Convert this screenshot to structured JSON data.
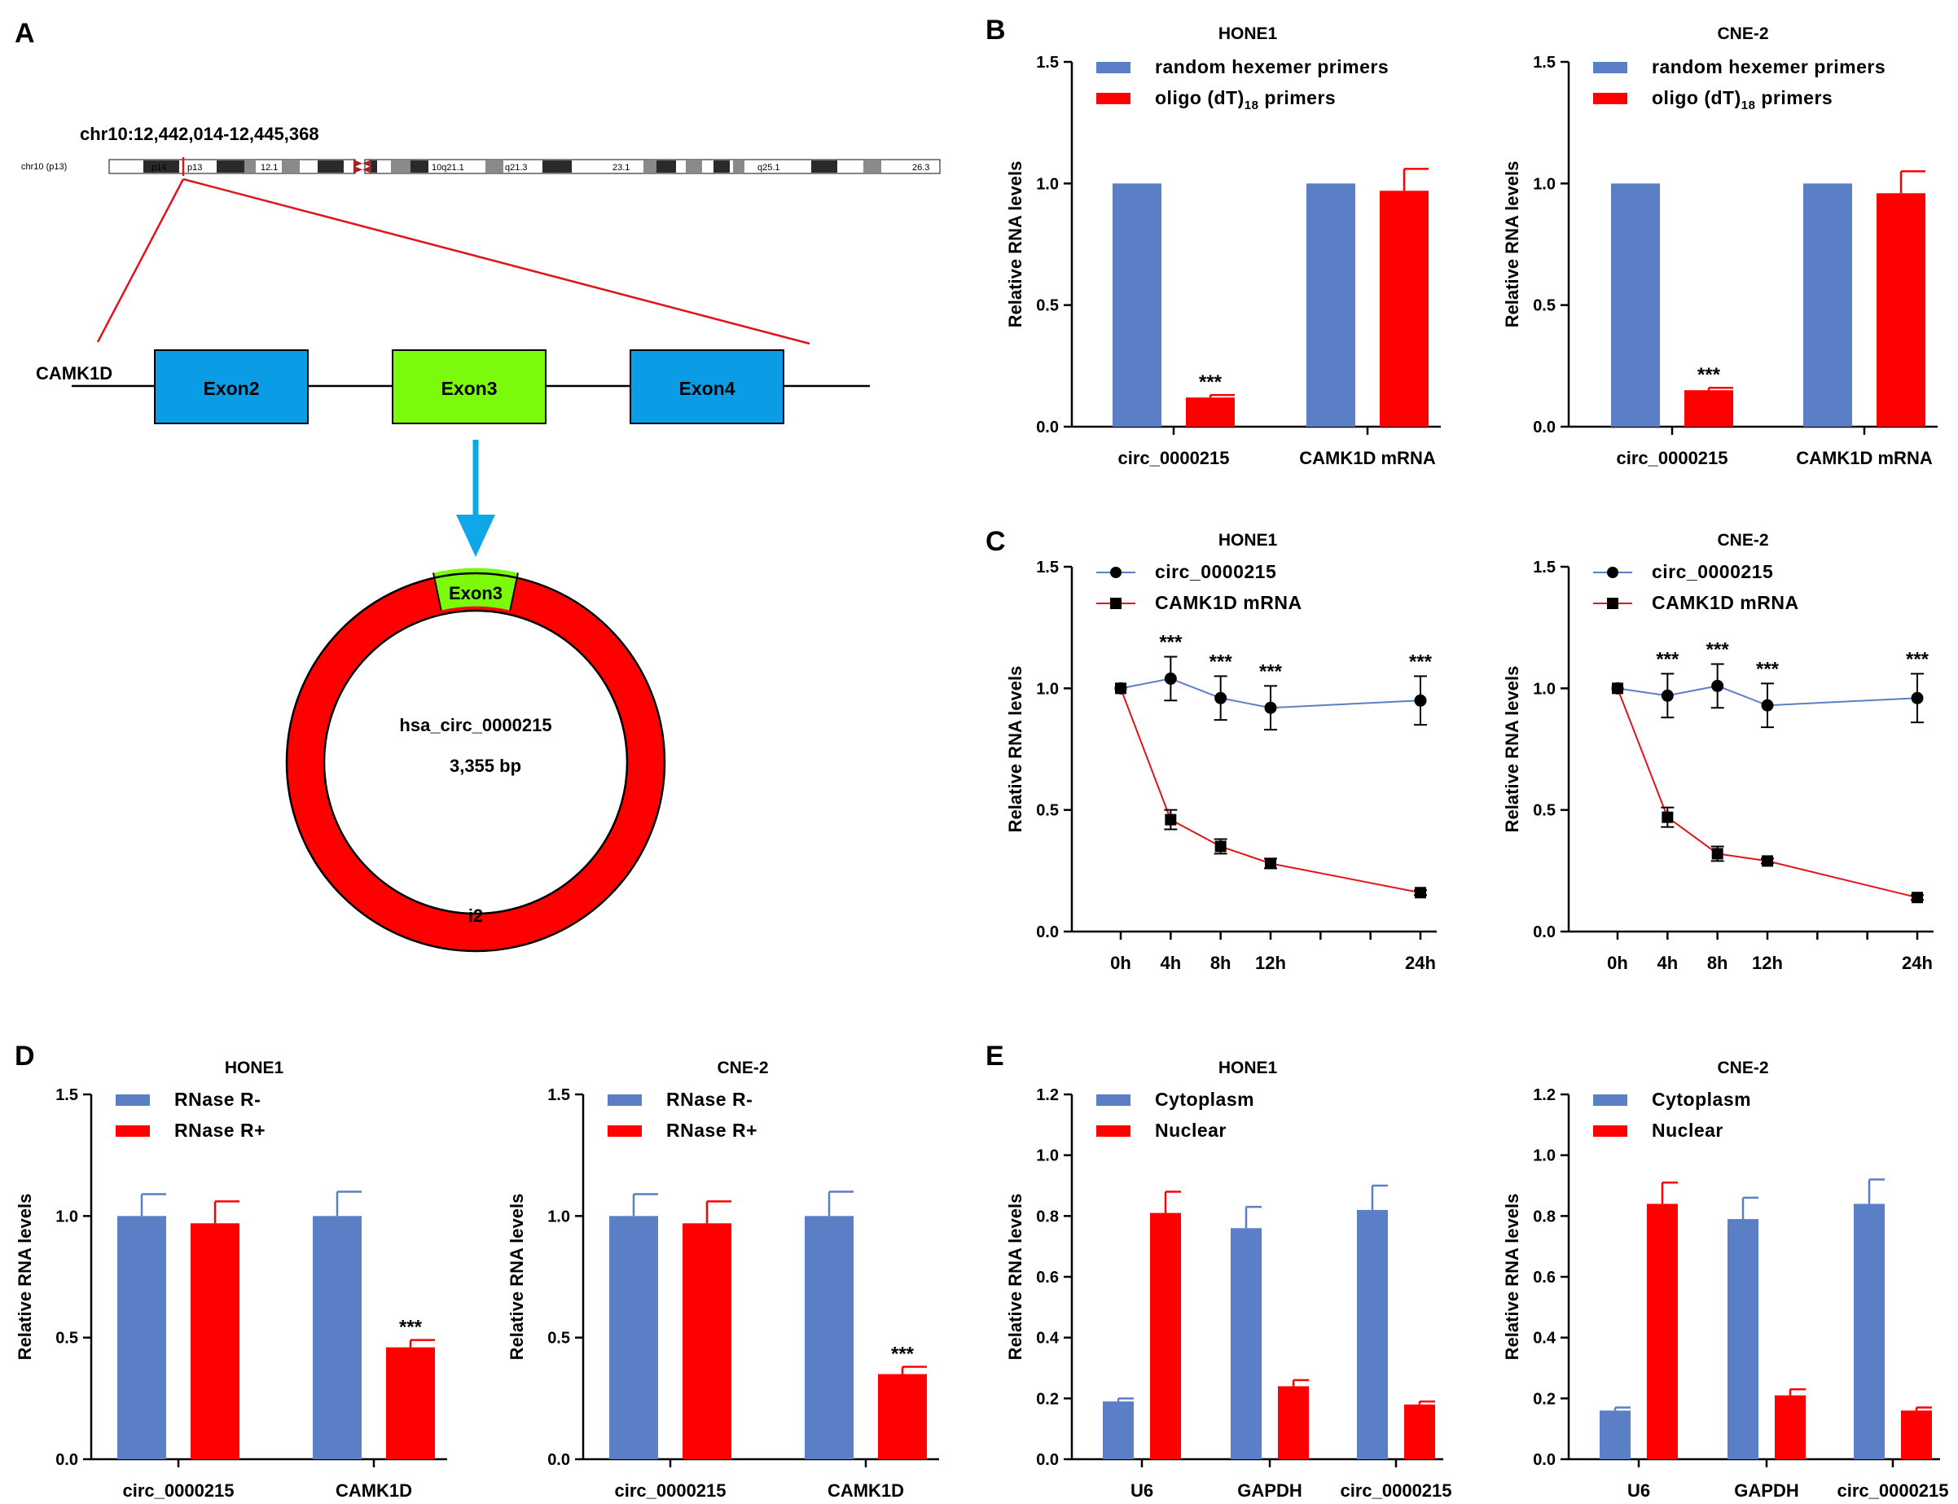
{
  "colors": {
    "blue": "#5b7fc6",
    "red": "#fe0000",
    "line_blue": "#5b7fc6",
    "line_red": "#e0141b",
    "exon_blue": "#0a9de6",
    "exon_green": "#7cfa0c",
    "arrow": "#10a7e8",
    "band_dark": "#2a2a2a",
    "band_gray": "#8a8a8a",
    "centromere": "#a4242a"
  },
  "panels": {
    "A": "A",
    "B": "B",
    "C": "C",
    "D": "D",
    "E": "E"
  },
  "panelA": {
    "coords": "chr10:12,442,014-12,445,368",
    "chrom_label": "chr10 (p13)",
    "bands": [
      "p14",
      "p13",
      "12.1",
      "10q21.1",
      "q21.3",
      "23.1",
      "q25.1",
      "26.3"
    ],
    "gene": "CAMK1D",
    "exons": [
      "Exon2",
      "Exon3",
      "Exon4"
    ],
    "circ_exon": "Exon3",
    "circ_intron": "i2",
    "circ_name": "hsa_circ_0000215",
    "circ_size": "3,355 bp"
  },
  "chart_data": [
    {
      "id": "B-HONE1",
      "type": "bar",
      "title": "HONE1",
      "categories": [
        "circ_0000215",
        "CAMK1D mRNA"
      ],
      "series": [
        {
          "name": "random hexemer primers",
          "values": [
            1.0,
            1.0
          ],
          "errors": [
            0,
            0
          ]
        },
        {
          "name": "oligo (dT)18 primers",
          "values": [
            0.12,
            0.97
          ],
          "errors": [
            0.01,
            0.09
          ]
        }
      ],
      "significance": [
        "***",
        ""
      ],
      "ylabel": "Relative RNA levels",
      "ylim": [
        0,
        1.5
      ],
      "yticks": [
        "0.0",
        "0.5",
        "1.0",
        "1.5"
      ]
    },
    {
      "id": "B-CNE2",
      "type": "bar",
      "title": "CNE-2",
      "categories": [
        "circ_0000215",
        "CAMK1D mRNA"
      ],
      "series": [
        {
          "name": "random hexemer primers",
          "values": [
            1.0,
            1.0
          ],
          "errors": [
            0,
            0
          ]
        },
        {
          "name": "oligo (dT)18 primers",
          "values": [
            0.15,
            0.96
          ],
          "errors": [
            0.01,
            0.09
          ]
        }
      ],
      "significance": [
        "***",
        ""
      ],
      "ylabel": "Relative RNA levels",
      "ylim": [
        0,
        1.5
      ],
      "yticks": [
        "0.0",
        "0.5",
        "1.0",
        "1.5"
      ]
    },
    {
      "id": "C-HONE1",
      "type": "line",
      "title": "HONE1",
      "x": [
        0,
        4,
        8,
        12,
        24
      ],
      "xticks": [
        "0h",
        "4h",
        "8h",
        "12h",
        "24h"
      ],
      "series": [
        {
          "name": "circ_0000215",
          "marker": "circle",
          "values": [
            1.0,
            1.04,
            0.96,
            0.92,
            0.95
          ],
          "errors": [
            0,
            0.09,
            0.09,
            0.09,
            0.1
          ]
        },
        {
          "name": "CAMK1D mRNA",
          "marker": "square",
          "values": [
            1.0,
            0.46,
            0.35,
            0.28,
            0.16
          ],
          "errors": [
            0,
            0.04,
            0.03,
            0.02,
            0.01
          ]
        }
      ],
      "significance": [
        "",
        "***",
        "***",
        "***",
        "***"
      ],
      "ylabel": "Relative RNA levels",
      "ylim": [
        0,
        1.5
      ],
      "yticks": [
        "0.0",
        "0.5",
        "1.0",
        "1.5"
      ]
    },
    {
      "id": "C-CNE2",
      "type": "line",
      "title": "CNE-2",
      "x": [
        0,
        4,
        8,
        12,
        24
      ],
      "xticks": [
        "0h",
        "4h",
        "8h",
        "12h",
        "24h"
      ],
      "series": [
        {
          "name": "circ_0000215",
          "marker": "circle",
          "values": [
            1.0,
            0.97,
            1.01,
            0.93,
            0.96
          ],
          "errors": [
            0,
            0.09,
            0.09,
            0.09,
            0.1
          ]
        },
        {
          "name": "CAMK1D mRNA",
          "marker": "square",
          "values": [
            1.0,
            0.47,
            0.32,
            0.29,
            0.14
          ],
          "errors": [
            0,
            0.04,
            0.03,
            0.01,
            0.01
          ]
        }
      ],
      "significance": [
        "",
        "***",
        "***",
        "***",
        "***"
      ],
      "ylabel": "Relative RNA levels",
      "ylim": [
        0,
        1.5
      ],
      "yticks": [
        "0.0",
        "0.5",
        "1.0",
        "1.5"
      ]
    },
    {
      "id": "D-HONE1",
      "type": "bar",
      "title": "HONE1",
      "categories": [
        "circ_0000215",
        "CAMK1D"
      ],
      "series": [
        {
          "name": "RNase R-",
          "values": [
            1.0,
            1.0
          ],
          "errors": [
            0.09,
            0.1
          ]
        },
        {
          "name": "RNase R+",
          "values": [
            0.97,
            0.46
          ],
          "errors": [
            0.09,
            0.03
          ]
        }
      ],
      "significance": [
        "",
        "***"
      ],
      "ylabel": "Relative RNA levels",
      "ylim": [
        0,
        1.5
      ],
      "yticks": [
        "0.0",
        "0.5",
        "1.0",
        "1.5"
      ]
    },
    {
      "id": "D-CNE2",
      "type": "bar",
      "title": "CNE-2",
      "categories": [
        "circ_0000215",
        "CAMK1D"
      ],
      "series": [
        {
          "name": "RNase R-",
          "values": [
            1.0,
            1.0
          ],
          "errors": [
            0.09,
            0.1
          ]
        },
        {
          "name": "RNase R+",
          "values": [
            0.97,
            0.35
          ],
          "errors": [
            0.09,
            0.03
          ]
        }
      ],
      "significance": [
        "",
        "***"
      ],
      "ylabel": "Relative RNA levels",
      "ylim": [
        0,
        1.5
      ],
      "yticks": [
        "0.0",
        "0.5",
        "1.0",
        "1.5"
      ]
    },
    {
      "id": "E-HONE1",
      "type": "bar",
      "title": "HONE1",
      "categories": [
        "U6",
        "GAPDH",
        "circ_0000215"
      ],
      "series": [
        {
          "name": "Cytoplasm",
          "values": [
            0.19,
            0.76,
            0.82
          ],
          "errors": [
            0.01,
            0.07,
            0.08
          ]
        },
        {
          "name": "Nuclear",
          "values": [
            0.81,
            0.24,
            0.18
          ],
          "errors": [
            0.07,
            0.02,
            0.01
          ]
        }
      ],
      "ylabel": "Relative RNA levels",
      "ylim": [
        0,
        1.2
      ],
      "yticks": [
        "0.0",
        "0.2",
        "0.4",
        "0.6",
        "0.8",
        "1.0",
        "1.2"
      ]
    },
    {
      "id": "E-CNE2",
      "type": "bar",
      "title": "CNE-2",
      "categories": [
        "U6",
        "GAPDH",
        "circ_0000215"
      ],
      "series": [
        {
          "name": "Cytoplasm",
          "values": [
            0.16,
            0.79,
            0.84
          ],
          "errors": [
            0.01,
            0.07,
            0.08
          ]
        },
        {
          "name": "Nuclear",
          "values": [
            0.84,
            0.21,
            0.16
          ],
          "errors": [
            0.07,
            0.02,
            0.01
          ]
        }
      ],
      "ylabel": "Relative RNA levels",
      "ylim": [
        0,
        1.2
      ],
      "yticks": [
        "0.0",
        "0.2",
        "0.4",
        "0.6",
        "0.8",
        "1.0",
        "1.2"
      ]
    }
  ]
}
